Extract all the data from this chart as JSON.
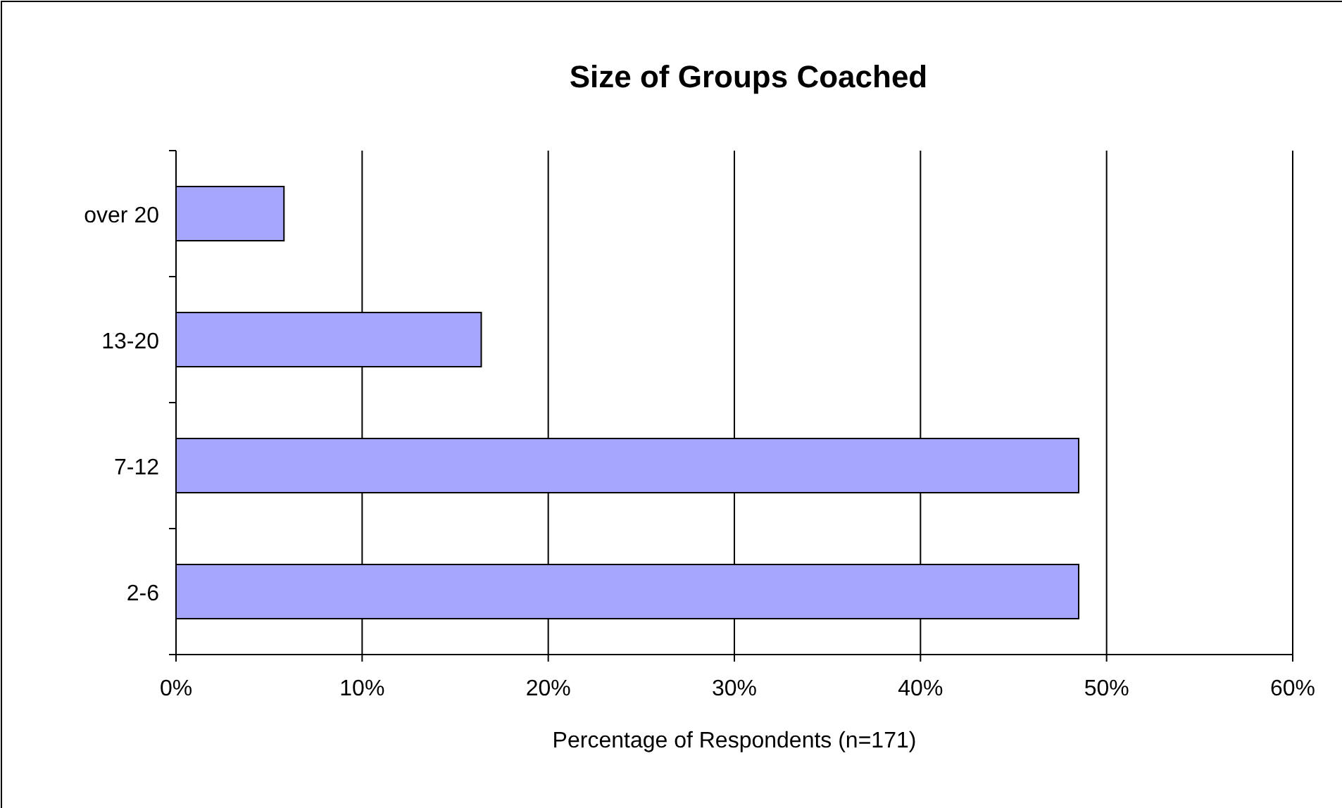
{
  "chart_data": {
    "type": "bar",
    "orientation": "horizontal",
    "title": "Size of Groups Coached",
    "xlabel": "Percentage of Respondents (n=171)",
    "categories": [
      "over 20",
      "13-20",
      "7-12",
      "2-6"
    ],
    "values": [
      5.8,
      16.4,
      48.5,
      48.5
    ],
    "color": "#a6a6ff",
    "xlim": [
      0,
      60
    ],
    "xticks": [
      {
        "value": 0,
        "label": "0%"
      },
      {
        "value": 10,
        "label": "10%"
      },
      {
        "value": 20,
        "label": "20%"
      },
      {
        "value": 30,
        "label": "30%"
      },
      {
        "value": 40,
        "label": "40%"
      },
      {
        "value": 50,
        "label": "50%"
      },
      {
        "value": 60,
        "label": "60%"
      }
    ],
    "grid": "x"
  }
}
